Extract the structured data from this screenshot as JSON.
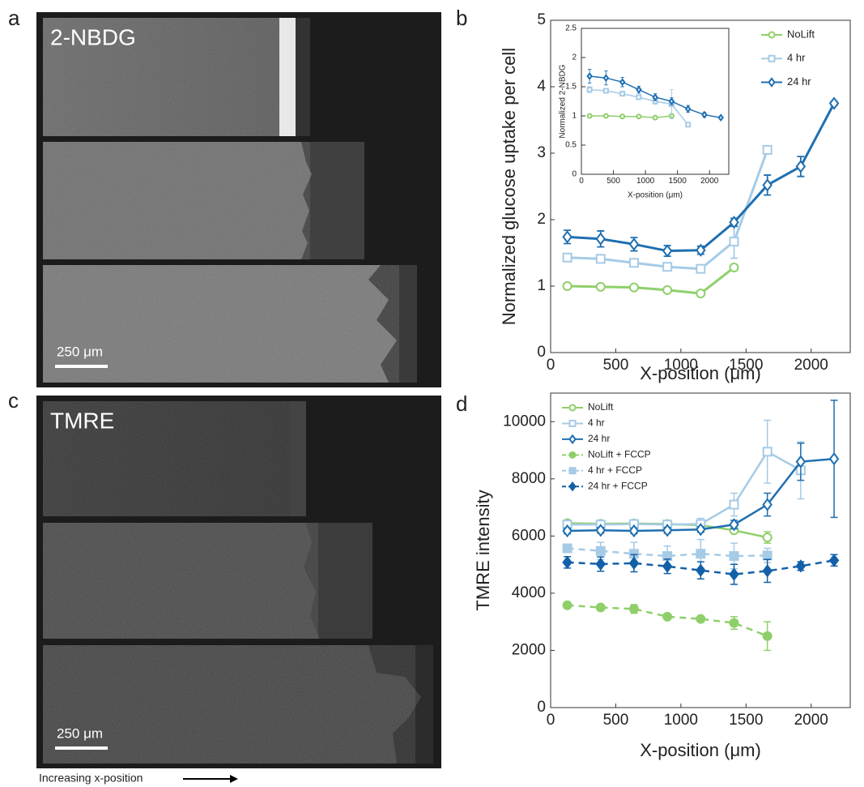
{
  "figure": {
    "panel_labels": [
      "a",
      "b",
      "c",
      "d"
    ],
    "image_labels": [
      "2-NBDG",
      "TMRE"
    ],
    "scale_bars": [
      "250 μm",
      "250 μm"
    ],
    "footer": "Increasing x-position"
  },
  "chart_data": [
    {
      "type": "line",
      "xlabel": "X-position (μm)",
      "ylabel": "Normalized glucose uptake per cell",
      "x": [
        128,
        384,
        640,
        896,
        1152,
        1408,
        1664,
        1920,
        2176
      ],
      "xlim": [
        0,
        2300
      ],
      "ylim": [
        0,
        5
      ],
      "xticks": [
        0,
        500,
        1000,
        1500,
        2000
      ],
      "yticks": [
        0,
        1,
        2,
        3,
        4,
        5
      ],
      "legend": "upper right",
      "series": [
        {
          "name": "NoLift",
          "color": "#8fcf6a",
          "marker": "circle",
          "filled": false,
          "dashed": false,
          "values": [
            1.0,
            0.99,
            0.98,
            0.94,
            0.89,
            1.28,
            null,
            null,
            null
          ],
          "errors": [
            0.03,
            0.03,
            0.03,
            0.03,
            0.03,
            0.04,
            null,
            null,
            null
          ]
        },
        {
          "name": "4 hr",
          "color": "#a6cbe6",
          "marker": "square",
          "filled": false,
          "dashed": false,
          "values": [
            1.43,
            1.41,
            1.35,
            1.29,
            1.26,
            1.67,
            3.05,
            null,
            null
          ],
          "errors": [
            0.04,
            0.03,
            0.03,
            0.03,
            0.03,
            0.25,
            0.03,
            null,
            null
          ]
        },
        {
          "name": "24 hr",
          "color": "#1f6fb0",
          "marker": "diamond",
          "filled": false,
          "dashed": false,
          "values": [
            1.74,
            1.71,
            1.63,
            1.53,
            1.54,
            1.96,
            2.52,
            2.8,
            3.75
          ],
          "errors": [
            0.1,
            0.12,
            0.1,
            0.08,
            0.06,
            0.06,
            0.15,
            0.15,
            0.03
          ]
        }
      ]
    },
    {
      "type": "line",
      "xlabel": "X-position (μm)",
      "ylabel": "Normalized 2-NBDG",
      "x": [
        128,
        384,
        640,
        896,
        1152,
        1408,
        1664,
        1920,
        2176
      ],
      "xlim": [
        0,
        2300
      ],
      "ylim": [
        0,
        2.5
      ],
      "xticks": [
        0,
        500,
        1000,
        1500,
        2000
      ],
      "yticks": [
        0,
        0.5,
        1,
        1.5,
        2,
        2.5
      ],
      "series": [
        {
          "color": "#8fcf6a",
          "marker": "circle",
          "filled": false,
          "dashed": false,
          "values": [
            1.0,
            1.0,
            0.99,
            0.99,
            0.97,
            1.0,
            null,
            null,
            null
          ],
          "errors": [
            0.02,
            0.02,
            0.02,
            0.02,
            0.03,
            0.02,
            null,
            null,
            null
          ]
        },
        {
          "color": "#a6cbe6",
          "marker": "square",
          "filled": false,
          "dashed": false,
          "values": [
            1.45,
            1.43,
            1.38,
            1.32,
            1.25,
            1.2,
            0.85,
            null,
            null
          ],
          "errors": [
            0.05,
            0.04,
            0.04,
            0.04,
            0.05,
            0.25,
            0.02,
            null,
            null
          ]
        },
        {
          "color": "#1f6fb0",
          "marker": "diamond",
          "filled": false,
          "dashed": false,
          "values": [
            1.68,
            1.65,
            1.58,
            1.45,
            1.32,
            1.25,
            1.12,
            1.02,
            0.97
          ],
          "errors": [
            0.12,
            0.12,
            0.08,
            0.06,
            0.06,
            0.06,
            0.06,
            0.04,
            0.02
          ]
        }
      ]
    },
    {
      "type": "line",
      "xlabel": "X-position (μm)",
      "ylabel": "TMRE intensity",
      "x": [
        128,
        384,
        640,
        896,
        1152,
        1408,
        1664,
        1920,
        2176
      ],
      "xlim": [
        0,
        2300
      ],
      "ylim": [
        0,
        11000
      ],
      "xticks": [
        0,
        500,
        1000,
        1500,
        2000
      ],
      "yticks": [
        0,
        2000,
        4000,
        6000,
        8000,
        10000
      ],
      "legend": "upper left",
      "series": [
        {
          "name": "NoLift",
          "color": "#8fcf6a",
          "marker": "circle",
          "filled": false,
          "dashed": false,
          "values": [
            6450,
            6430,
            6440,
            6420,
            6380,
            6200,
            5950,
            null,
            null
          ],
          "errors": [
            60,
            60,
            60,
            60,
            80,
            100,
            200,
            null,
            null
          ]
        },
        {
          "name": "4 hr",
          "color": "#a6cbe6",
          "marker": "square",
          "filled": false,
          "dashed": false,
          "values": [
            6400,
            6400,
            6420,
            6400,
            6420,
            7100,
            8950,
            8300,
            null
          ],
          "errors": [
            80,
            80,
            80,
            100,
            200,
            400,
            1100,
            1000,
            null
          ]
        },
        {
          "name": "24 hr",
          "color": "#1f6fb0",
          "marker": "diamond",
          "filled": false,
          "dashed": false,
          "values": [
            6180,
            6200,
            6180,
            6200,
            6230,
            6400,
            7100,
            8600,
            8700
          ],
          "errors": [
            100,
            100,
            100,
            100,
            100,
            150,
            400,
            650,
            2050
          ]
        },
        {
          "name": "NoLift + FCCP",
          "color": "#8fcf6a",
          "marker": "circle",
          "filled": true,
          "dashed": true,
          "values": [
            3580,
            3500,
            3450,
            3180,
            3100,
            2960,
            2500,
            null,
            null
          ],
          "errors": [
            80,
            60,
            150,
            80,
            80,
            220,
            500,
            null,
            null
          ]
        },
        {
          "name": "4 hr + FCCP",
          "color": "#a6cbe6",
          "marker": "square",
          "filled": true,
          "dashed": true,
          "values": [
            5570,
            5480,
            5380,
            5300,
            5380,
            5300,
            5320,
            null,
            null
          ],
          "errors": [
            100,
            300,
            400,
            350,
            500,
            450,
            250,
            null,
            null
          ]
        },
        {
          "name": "24 hr + FCCP",
          "color": "#1360a8",
          "marker": "diamond",
          "filled": true,
          "dashed": true,
          "values": [
            5080,
            5020,
            5050,
            4940,
            4800,
            4660,
            4780,
            4950,
            5150
          ],
          "errors": [
            200,
            250,
            300,
            250,
            300,
            350,
            400,
            150,
            200
          ]
        }
      ]
    }
  ]
}
